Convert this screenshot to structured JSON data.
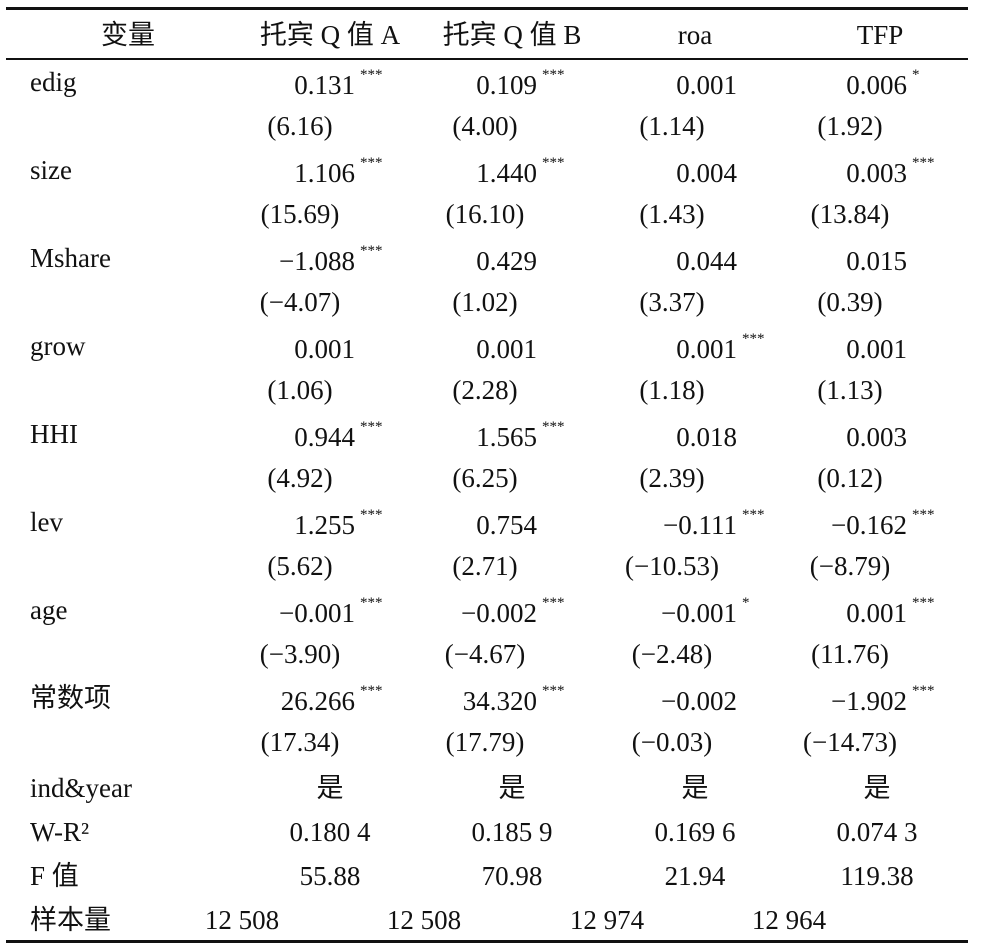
{
  "table": {
    "header": [
      "变量",
      "托宾 Q 值 A",
      "托宾 Q 值 B",
      "roa",
      "TFP"
    ],
    "rows": [
      {
        "name": "edig",
        "coef": [
          {
            "value": "0.131",
            "sig": "***"
          },
          {
            "value": "0.109",
            "sig": "***"
          },
          {
            "value": "0.001"
          },
          {
            "value": "0.006",
            "sig": "*"
          }
        ],
        "t": [
          "(6.16)",
          "(4.00)",
          "(1.14)",
          "(1.92)"
        ]
      },
      {
        "name": "size",
        "coef": [
          {
            "value": "1.106",
            "sig": "***"
          },
          {
            "value": "1.440",
            "sig": "***"
          },
          {
            "value": "0.004"
          },
          {
            "value": "0.003",
            "sig": "***"
          }
        ],
        "t": [
          "(15.69)",
          "(16.10)",
          "(1.43)",
          "(13.84)"
        ]
      },
      {
        "name": "Mshare",
        "coef": [
          {
            "value": "−1.088",
            "sig": "***"
          },
          {
            "value": "0.429"
          },
          {
            "value": "0.044"
          },
          {
            "value": "0.015"
          }
        ],
        "t": [
          "(−4.07)",
          "(1.02)",
          "(3.37)",
          "(0.39)"
        ]
      },
      {
        "name": "grow",
        "coef": [
          {
            "value": "0.001"
          },
          {
            "value": "0.001"
          },
          {
            "value": "0.001",
            "sig": "***"
          },
          {
            "value": "0.001"
          }
        ],
        "t": [
          "(1.06)",
          "(2.28)",
          "(1.18)",
          "(1.13)"
        ]
      },
      {
        "name": "HHI",
        "coef": [
          {
            "value": "0.944",
            "sig": "***"
          },
          {
            "value": "1.565",
            "sig": "***"
          },
          {
            "value": "0.018"
          },
          {
            "value": "0.003"
          }
        ],
        "t": [
          "(4.92)",
          "(6.25)",
          "(2.39)",
          "(0.12)"
        ]
      },
      {
        "name": "lev",
        "coef": [
          {
            "value": "1.255",
            "sig": "***"
          },
          {
            "value": "0.754"
          },
          {
            "value": "−0.111",
            "sig": "***"
          },
          {
            "value": "−0.162",
            "sig": "***"
          }
        ],
        "t": [
          "(5.62)",
          "(2.71)",
          "(−10.53)",
          "(−8.79)"
        ]
      },
      {
        "name": "age",
        "coef": [
          {
            "value": "−0.001",
            "sig": "***"
          },
          {
            "value": "−0.002",
            "sig": "***"
          },
          {
            "value": "−0.001",
            "sig": "*"
          },
          {
            "value": "0.001",
            "sig": "***"
          }
        ],
        "t": [
          "(−3.90)",
          "(−4.67)",
          "(−2.48)",
          "(11.76)"
        ]
      },
      {
        "name": "常数项",
        "coef": [
          {
            "value": "26.266",
            "sig": "***"
          },
          {
            "value": "34.320",
            "sig": "***"
          },
          {
            "value": "−0.002"
          },
          {
            "value": "−1.902",
            "sig": "***"
          }
        ],
        "t": [
          "(17.34)",
          "(17.79)",
          "(−0.03)",
          "(−14.73)"
        ]
      }
    ],
    "footer": [
      {
        "name": "ind&year",
        "values": [
          "是",
          "是",
          "是",
          "是"
        ]
      },
      {
        "name": "W-R²",
        "values": [
          "0.180 4",
          "0.185 9",
          "0.169 6",
          "0.074 3"
        ]
      },
      {
        "name": "F 值",
        "values": [
          "55.88",
          "70.98",
          "21.94",
          "119.38"
        ]
      },
      {
        "name": "样本量",
        "values": [
          "12 508",
          "12 508",
          "12 974",
          "12 964"
        ]
      }
    ]
  }
}
